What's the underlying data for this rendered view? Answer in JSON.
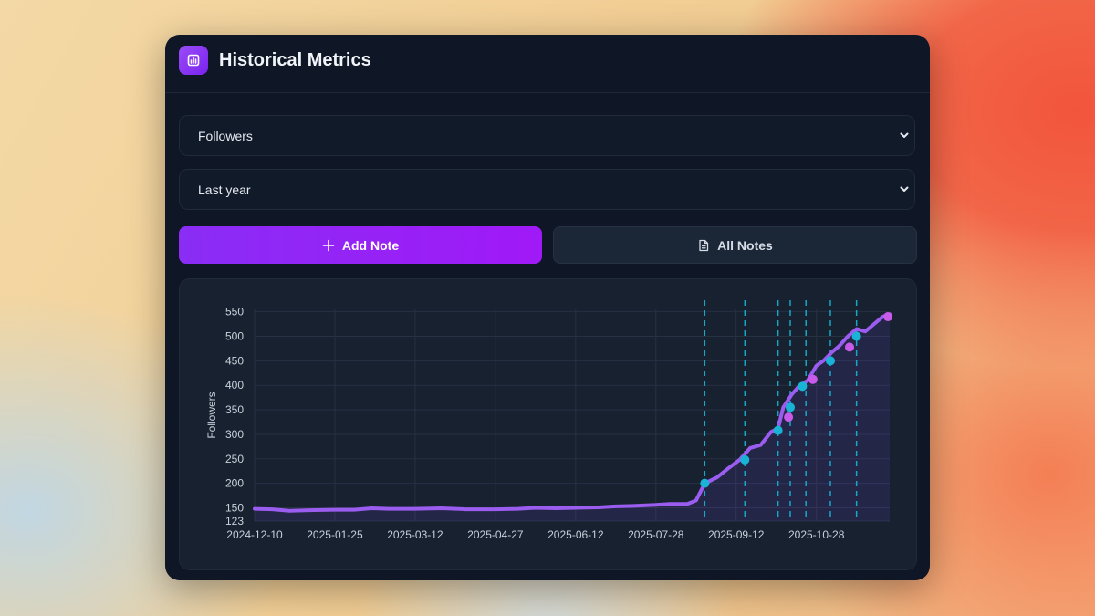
{
  "app": {
    "title": "Historical Metrics",
    "icon": "bar-chart-icon",
    "accent": "#8b2ef5"
  },
  "metric_select": {
    "value": "Followers"
  },
  "range_select": {
    "value": "Last year"
  },
  "buttons": {
    "add_note": "Add Note",
    "all_notes": "All Notes"
  },
  "chart_data": {
    "type": "line",
    "title": "",
    "xlabel": "",
    "ylabel": "Followers",
    "x_start": "2024-12-10",
    "x_end": "2025-12-09",
    "xticks": [
      "2024-12-10",
      "2025-01-25",
      "2025-03-12",
      "2025-04-27",
      "2025-06-12",
      "2025-07-28",
      "2025-09-12",
      "2025-10-28"
    ],
    "yticks": [
      123,
      150,
      200,
      250,
      300,
      350,
      400,
      450,
      500,
      550
    ],
    "ylim": [
      123,
      555
    ],
    "line_color": "#9b5cf0",
    "note_color": "#16b6d8",
    "series": [
      {
        "name": "Followers",
        "points": [
          [
            "2024-12-10",
            148
          ],
          [
            "2024-12-20",
            147
          ],
          [
            "2024-12-30",
            144
          ],
          [
            "2025-01-10",
            145
          ],
          [
            "2025-01-25",
            146
          ],
          [
            "2025-02-05",
            146
          ],
          [
            "2025-02-15",
            149
          ],
          [
            "2025-02-25",
            148
          ],
          [
            "2025-03-12",
            148
          ],
          [
            "2025-03-27",
            149
          ],
          [
            "2025-04-10",
            147
          ],
          [
            "2025-04-27",
            147
          ],
          [
            "2025-05-10",
            148
          ],
          [
            "2025-05-20",
            150
          ],
          [
            "2025-06-01",
            149
          ],
          [
            "2025-06-12",
            150
          ],
          [
            "2025-06-25",
            151
          ],
          [
            "2025-07-05",
            153
          ],
          [
            "2025-07-15",
            154
          ],
          [
            "2025-07-28",
            156
          ],
          [
            "2025-08-05",
            158
          ],
          [
            "2025-08-15",
            158
          ],
          [
            "2025-08-20",
            165
          ],
          [
            "2025-08-25",
            200
          ],
          [
            "2025-09-01",
            212
          ],
          [
            "2025-09-08",
            232
          ],
          [
            "2025-09-14",
            248
          ],
          [
            "2025-09-20",
            272
          ],
          [
            "2025-09-26",
            278
          ],
          [
            "2025-10-02",
            305
          ],
          [
            "2025-10-06",
            312
          ],
          [
            "2025-10-09",
            355
          ],
          [
            "2025-10-14",
            382
          ],
          [
            "2025-10-18",
            398
          ],
          [
            "2025-10-23",
            410
          ],
          [
            "2025-10-28",
            440
          ],
          [
            "2025-11-01",
            450
          ],
          [
            "2025-11-06",
            468
          ],
          [
            "2025-11-10",
            480
          ],
          [
            "2025-11-15",
            500
          ],
          [
            "2025-11-20",
            515
          ],
          [
            "2025-11-25",
            510
          ],
          [
            "2025-11-30",
            525
          ],
          [
            "2025-12-05",
            540
          ],
          [
            "2025-12-09",
            545
          ]
        ]
      }
    ],
    "note_lines": [
      "2025-08-25",
      "2025-09-17",
      "2025-10-06",
      "2025-10-13",
      "2025-10-22",
      "2025-11-05",
      "2025-11-20"
    ],
    "note_markers": [
      {
        "date": "2025-08-25",
        "value": 200,
        "color": "#19b3d5"
      },
      {
        "date": "2025-09-17",
        "value": 248,
        "color": "#19b3d5"
      },
      {
        "date": "2025-10-06",
        "value": 308,
        "color": "#19b3d5"
      },
      {
        "date": "2025-10-12",
        "value": 335,
        "color": "#c85be9"
      },
      {
        "date": "2025-10-13",
        "value": 355,
        "color": "#19b3d5"
      },
      {
        "date": "2025-10-20",
        "value": 398,
        "color": "#19b3d5"
      },
      {
        "date": "2025-10-26",
        "value": 412,
        "color": "#c85be9"
      },
      {
        "date": "2025-11-05",
        "value": 450,
        "color": "#19b3d5"
      },
      {
        "date": "2025-11-16",
        "value": 478,
        "color": "#c85be9"
      },
      {
        "date": "2025-11-20",
        "value": 500,
        "color": "#19b3d5"
      },
      {
        "date": "2025-12-08",
        "value": 540,
        "color": "#c85be9"
      }
    ]
  }
}
